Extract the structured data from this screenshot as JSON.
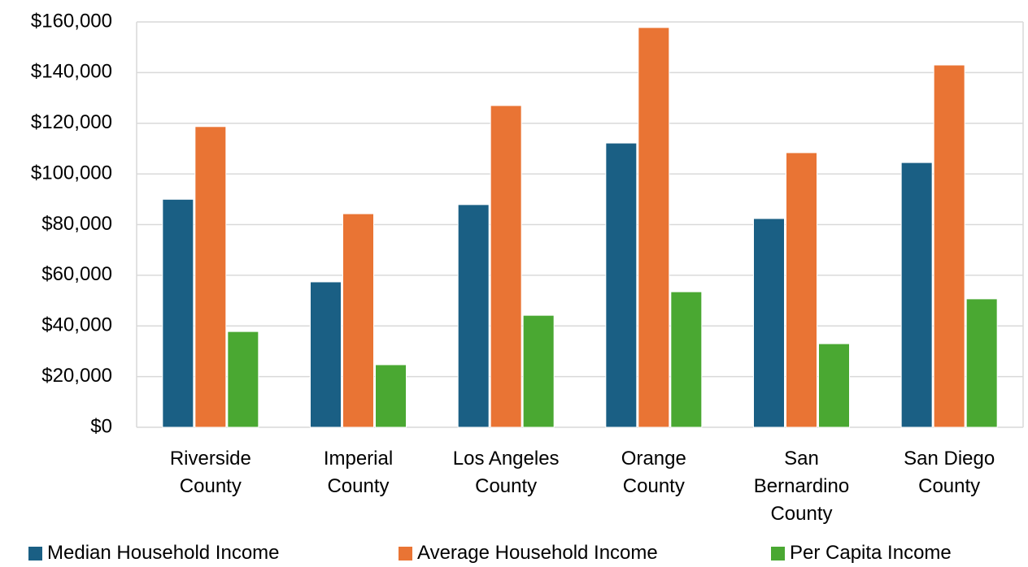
{
  "chart_data": {
    "type": "bar",
    "categories": [
      "Riverside County",
      "Imperial County",
      "Los Angeles County",
      "Orange County",
      "San Bernardino County",
      "San Diego County"
    ],
    "series": [
      {
        "name": "Median Household Income",
        "color": "#1a5f84",
        "values": [
          90000,
          57400,
          87900,
          112200,
          82400,
          104500
        ]
      },
      {
        "name": "Average Household Income",
        "color": "#e97434",
        "values": [
          118700,
          84300,
          127000,
          157800,
          108400,
          143000
        ]
      },
      {
        "name": "Per Capita Income",
        "color": "#4aa832",
        "values": [
          37800,
          24700,
          44200,
          53500,
          33000,
          50700
        ]
      }
    ],
    "ylim": [
      0,
      160000
    ],
    "yticks": [
      {
        "value": 0,
        "label": "$0"
      },
      {
        "value": 20000,
        "label": "$20,000"
      },
      {
        "value": 40000,
        "label": "$40,000"
      },
      {
        "value": 60000,
        "label": "$60,000"
      },
      {
        "value": 80000,
        "label": "$80,000"
      },
      {
        "value": 100000,
        "label": "$100,000"
      },
      {
        "value": 120000,
        "label": "$120,000"
      },
      {
        "value": 140000,
        "label": "$140,000"
      },
      {
        "value": 160000,
        "label": "$160,000"
      }
    ],
    "grid": true,
    "legend": "bottom"
  }
}
